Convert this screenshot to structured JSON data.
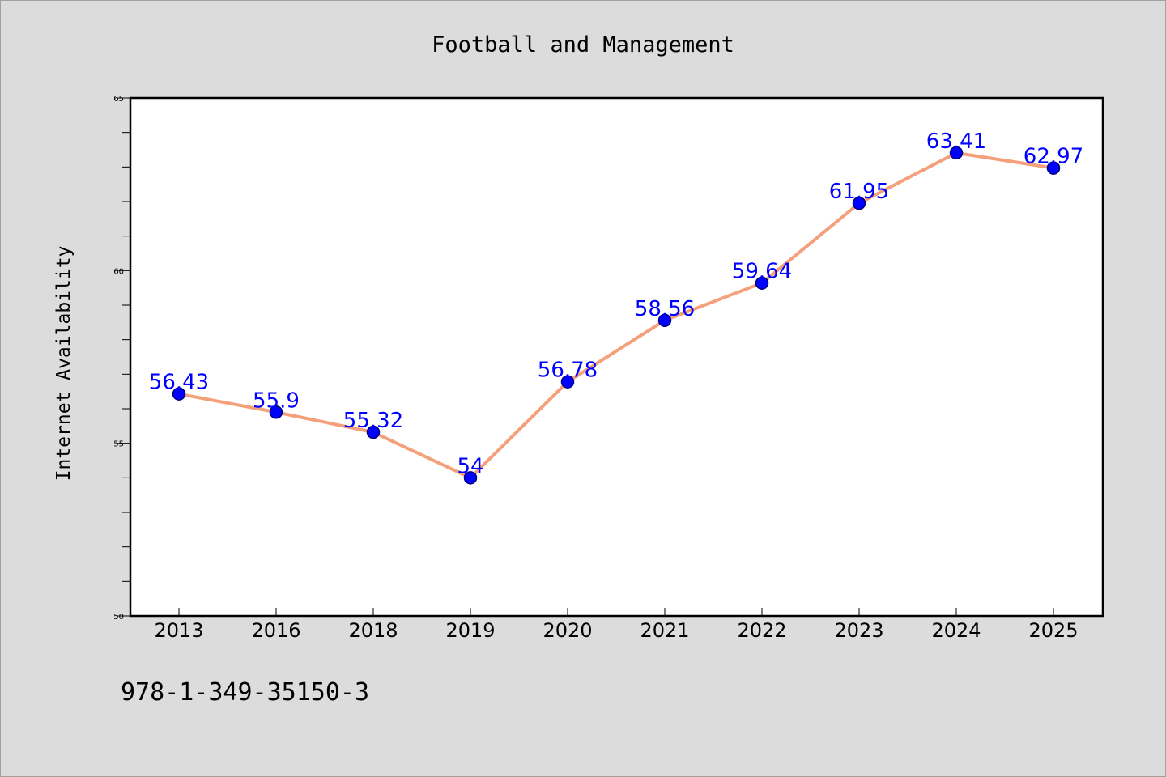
{
  "chart_data": {
    "type": "line",
    "title": "Football and Management",
    "xlabel": "",
    "ylabel": "Internet Availability",
    "categories": [
      "2013",
      "2016",
      "2018",
      "2019",
      "2020",
      "2021",
      "2022",
      "2023",
      "2024",
      "2025"
    ],
    "series": [
      {
        "values": [
          56.43,
          55.9,
          55.32,
          54,
          56.78,
          58.56,
          59.64,
          61.95,
          63.41,
          62.97
        ],
        "labels": [
          "56.43",
          "55.9",
          "55.32",
          "54",
          "56.78",
          "58.56",
          "59.64",
          "61.95",
          "63.41",
          "62.97"
        ]
      }
    ],
    "ylim": [
      50,
      65
    ],
    "yticks": [
      50,
      55,
      60,
      65
    ],
    "ytick_labels": [
      "50",
      "55",
      "60",
      "65"
    ],
    "grid": false,
    "colors": {
      "line": "#f4a07a",
      "marker": "#0000ff",
      "marker_edge": "#000080",
      "data_label": "#0000ff",
      "plot_background": "#ffffff",
      "figure_background": "#dcdcdc"
    }
  },
  "footer": {
    "isbn": "978-1-349-35150-3"
  }
}
